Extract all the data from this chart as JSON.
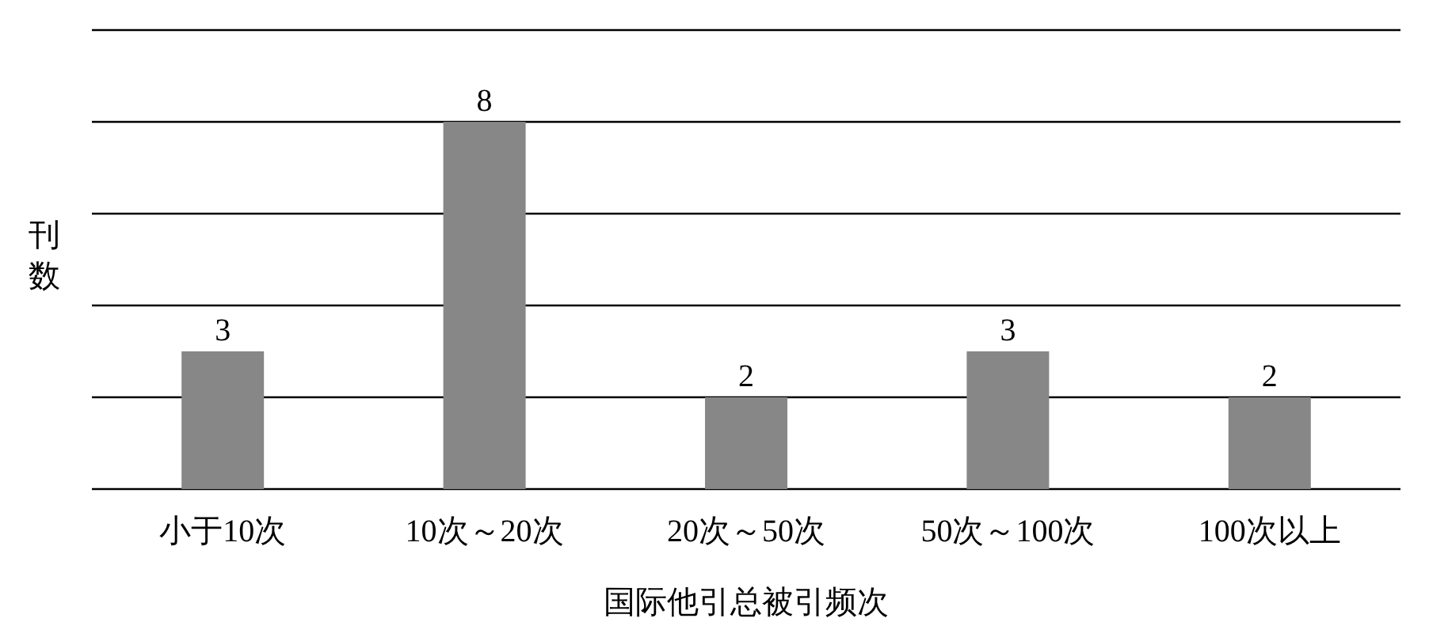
{
  "chart_data": {
    "type": "bar",
    "xlabel": "国际他引总被引频次",
    "ylabel": "刊数",
    "categories": [
      "小于10次",
      "10次～20次",
      "20次～50次",
      "50次～100次",
      "100次以上"
    ],
    "values": [
      3,
      8,
      2,
      3,
      2
    ],
    "color": "#878787",
    "data_labels": true,
    "ylim": [
      0,
      10
    ],
    "yticks": [
      {
        "value": 0,
        "label": null
      },
      {
        "value": 2,
        "label": null
      },
      {
        "value": 4,
        "label": null
      },
      {
        "value": 6,
        "label": null
      },
      {
        "value": 8,
        "label": null
      },
      {
        "value": 10,
        "label": null
      }
    ],
    "grid": "y",
    "tick_labels": "x"
  }
}
